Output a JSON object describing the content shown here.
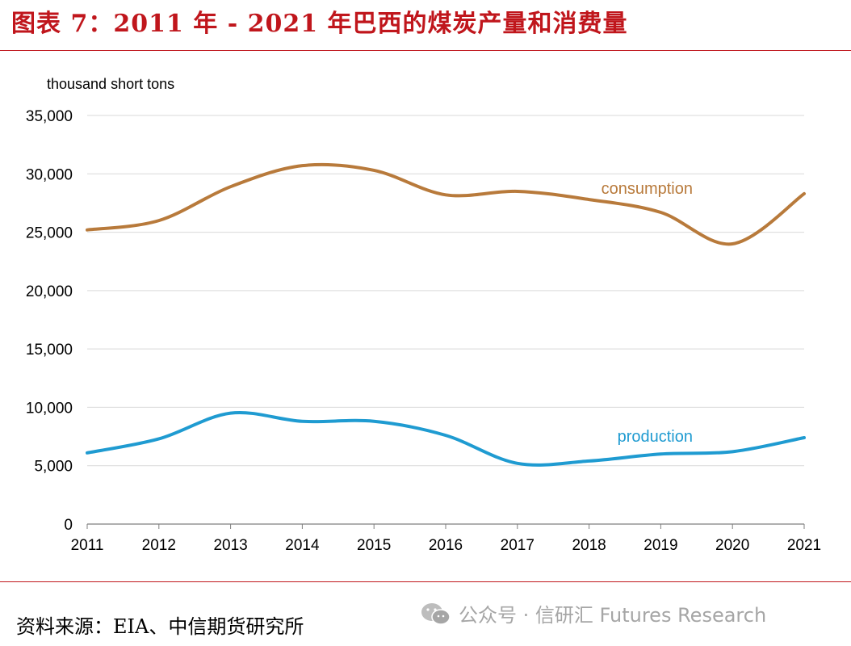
{
  "header": {
    "title": "图表 7：2011 年 - 2021 年巴西的煤炭产量和消费量"
  },
  "footer": {
    "source": "资料来源：EIA、中信期货研究所",
    "watermark": "公众号 · 信研汇 Futures Research",
    "watermark_icon": "wechat-icon"
  },
  "colors": {
    "title": "#c0161c",
    "rule": "#c0161c",
    "consumption": "#b87a3b",
    "production": "#1f9bd1",
    "grid": "#d9d9d9",
    "axis_text": "#000000"
  },
  "chart_data": {
    "type": "line",
    "unit_label": "thousand short tons",
    "x": [
      "2011",
      "2012",
      "2013",
      "2014",
      "2015",
      "2016",
      "2017",
      "2018",
      "2019",
      "2020",
      "2021"
    ],
    "ylim": [
      0,
      35000
    ],
    "yticks": [
      0,
      5000,
      10000,
      15000,
      20000,
      25000,
      30000,
      35000
    ],
    "ytick_labels": [
      "0",
      "5,000",
      "10,000",
      "15,000",
      "20,000",
      "25,000",
      "30,000",
      "35,000"
    ],
    "grid": true,
    "series": [
      {
        "name": "consumption",
        "values": [
          25200,
          26000,
          28900,
          30700,
          30300,
          28200,
          28500,
          27800,
          26700,
          24000,
          28300
        ]
      },
      {
        "name": "production",
        "values": [
          6100,
          7300,
          9500,
          8800,
          8800,
          7600,
          5200,
          5400,
          6000,
          6200,
          7400
        ]
      }
    ]
  }
}
